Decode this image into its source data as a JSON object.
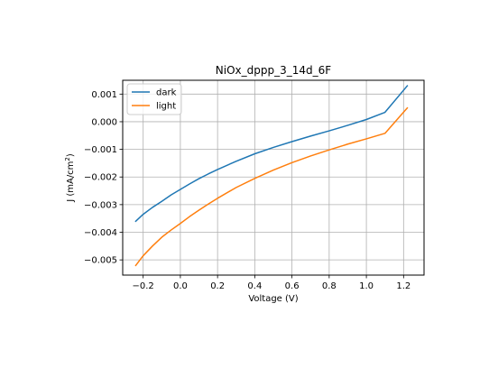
{
  "chart_data": {
    "type": "line",
    "title": "NiOx_dppp_3_14d_6F",
    "xlabel": "Voltage (V)",
    "ylabel_main": "J (mA/cm",
    "ylabel_sup": "2",
    "ylabel_close": ")",
    "xlim": [
      -0.31,
      1.31
    ],
    "ylim": [
      -0.00555,
      0.0015
    ],
    "xticks": [
      -0.2,
      0.0,
      0.2,
      0.4,
      0.6,
      0.8,
      1.0,
      1.2
    ],
    "xtick_labels": [
      "−0.2",
      "0.0",
      "0.2",
      "0.4",
      "0.6",
      "0.8",
      "1.0",
      "1.2"
    ],
    "yticks": [
      -0.005,
      -0.004,
      -0.003,
      -0.002,
      -0.001,
      0.0,
      0.001
    ],
    "ytick_labels": [
      "−0.005",
      "−0.004",
      "−0.003",
      "−0.002",
      "−0.001",
      "0.000",
      "0.001"
    ],
    "grid": true,
    "legend": "top-left",
    "series": [
      {
        "name": "dark",
        "color": "#1f77b4",
        "x": [
          -0.24,
          -0.2,
          -0.15,
          -0.1,
          -0.05,
          0.0,
          0.05,
          0.1,
          0.15,
          0.2,
          0.3,
          0.4,
          0.5,
          0.6,
          0.7,
          0.8,
          0.9,
          1.0,
          1.1,
          1.22
        ],
        "y": [
          -0.0036,
          -0.00335,
          -0.0031,
          -0.00288,
          -0.00265,
          -0.00245,
          -0.00225,
          -0.00206,
          -0.00189,
          -0.00173,
          -0.00143,
          -0.00116,
          -0.00093,
          -0.00072,
          -0.00052,
          -0.00033,
          -0.00013,
          8e-05,
          0.00034,
          0.0013
        ]
      },
      {
        "name": "light",
        "color": "#ff7f0e",
        "x": [
          -0.24,
          -0.2,
          -0.15,
          -0.1,
          -0.05,
          0.0,
          0.05,
          0.1,
          0.15,
          0.2,
          0.3,
          0.4,
          0.5,
          0.6,
          0.7,
          0.8,
          0.9,
          1.0,
          1.1,
          1.22
        ],
        "y": [
          -0.0052,
          -0.00485,
          -0.0045,
          -0.00418,
          -0.00392,
          -0.00368,
          -0.00343,
          -0.0032,
          -0.00298,
          -0.00277,
          -0.00238,
          -0.00205,
          -0.00175,
          -0.00148,
          -0.00124,
          -0.00102,
          -0.00081,
          -0.00062,
          -0.00042,
          0.0005
        ]
      }
    ]
  }
}
